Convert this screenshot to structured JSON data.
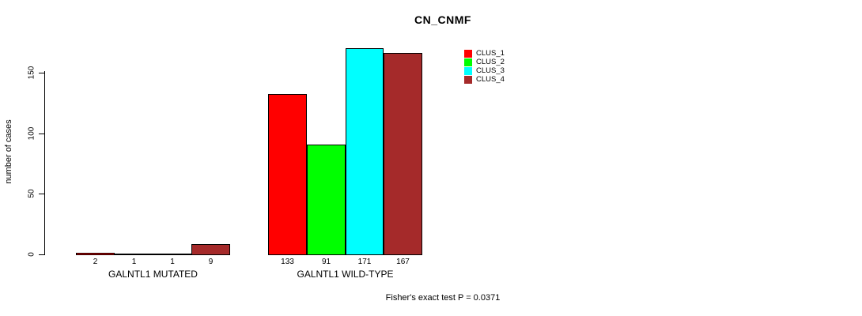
{
  "title": "CN_CNMF",
  "chart_data": {
    "type": "bar",
    "title": "CN_CNMF",
    "ylabel": "number of cases",
    "xlabel": "",
    "ylim": [
      0,
      175
    ],
    "yticks": [
      0,
      50,
      100,
      150
    ],
    "grid": false,
    "legend_position": "top-right",
    "categories": [
      "GALNTL1 MUTATED",
      "GALNTL1 WILD-TYPE"
    ],
    "series": [
      {
        "name": "CLUS_1",
        "color": "#FF0000",
        "values": [
          2,
          133
        ]
      },
      {
        "name": "CLUS_2",
        "color": "#00FF00",
        "values": [
          1,
          91
        ]
      },
      {
        "name": "CLUS_3",
        "color": "#00FFFF",
        "values": [
          1,
          171
        ]
      },
      {
        "name": "CLUS_4",
        "color": "#A52A2A",
        "values": [
          9,
          167
        ]
      }
    ],
    "bar_value_labels": [
      [
        "2",
        "1",
        "1",
        "9"
      ],
      [
        "133",
        "91",
        "171",
        "167"
      ]
    ],
    "footnote": "Fisher's exact test P = 0.0371"
  }
}
